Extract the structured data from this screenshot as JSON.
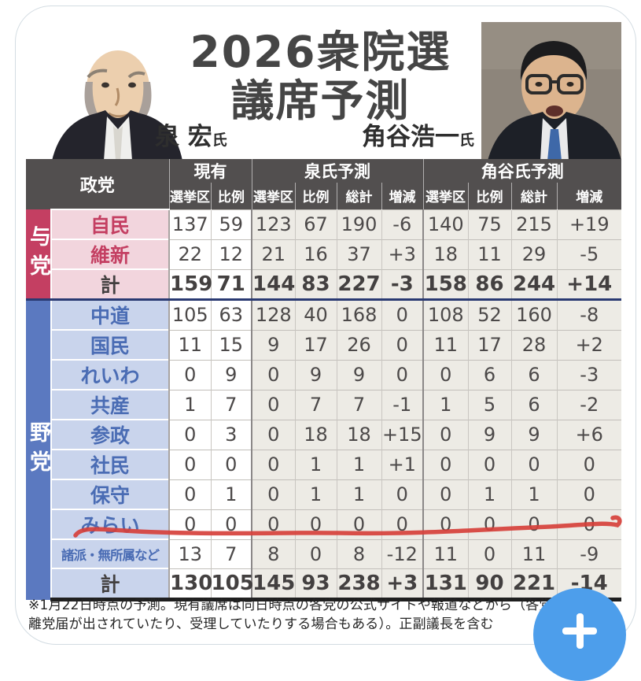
{
  "title": {
    "line1": "2026衆院選",
    "line2": "議席予測"
  },
  "commentators": {
    "left": {
      "name": "泉 宏",
      "suffix": "氏"
    },
    "right": {
      "name": "角谷浩一",
      "suffix": "氏"
    }
  },
  "colors": {
    "header_bg": "#524f4f",
    "ruling_accent": "#c43f62",
    "ruling_row_bg": "#f2d5dd",
    "ruling_text": "#c43f62",
    "opposition_accent": "#5b79c0",
    "opposition_row_bg": "#c9d4ec",
    "opposition_text": "#4a6cb4",
    "total_text": "#434040",
    "prediction_cell_bg": "#edebe5",
    "current_cell_bg": "#ffffff",
    "red_annotation": "#d6403b",
    "fab_blue": "#4d9eeb"
  },
  "table": {
    "header": {
      "party": "政党",
      "groups": [
        {
          "label": "現有",
          "cols": [
            "選挙区",
            "比例"
          ]
        },
        {
          "label": "泉氏予測",
          "cols": [
            "選挙区",
            "比例",
            "総計",
            "増減"
          ]
        },
        {
          "label": "角谷氏予測",
          "cols": [
            "選挙区",
            "比例",
            "総計",
            "増減"
          ]
        }
      ]
    },
    "sections": [
      {
        "key": "ruling",
        "name": "与党",
        "rows": [
          {
            "party": "自民",
            "values": [
              "137",
              "59",
              "123",
              "67",
              "190",
              "-6",
              "140",
              "75",
              "215",
              "+19"
            ],
            "is_total": false
          },
          {
            "party": "維新",
            "values": [
              "22",
              "12",
              "21",
              "16",
              "37",
              "+3",
              "18",
              "11",
              "29",
              "-5"
            ],
            "is_total": false
          },
          {
            "party": "計",
            "values": [
              "159",
              "71",
              "144",
              "83",
              "227",
              "-3",
              "158",
              "86",
              "244",
              "+14"
            ],
            "is_total": true
          }
        ]
      },
      {
        "key": "opposition",
        "name": "野党",
        "rows": [
          {
            "party": "中道",
            "values": [
              "105",
              "63",
              "128",
              "40",
              "168",
              "0",
              "108",
              "52",
              "160",
              "-8"
            ],
            "is_total": false
          },
          {
            "party": "国民",
            "values": [
              "11",
              "15",
              "9",
              "17",
              "26",
              "0",
              "11",
              "17",
              "28",
              "+2"
            ],
            "is_total": false
          },
          {
            "party": "れいわ",
            "values": [
              "0",
              "9",
              "0",
              "9",
              "9",
              "0",
              "0",
              "6",
              "6",
              "-3"
            ],
            "is_total": false
          },
          {
            "party": "共産",
            "values": [
              "1",
              "7",
              "0",
              "7",
              "7",
              "-1",
              "1",
              "5",
              "6",
              "-2"
            ],
            "is_total": false
          },
          {
            "party": "参政",
            "values": [
              "0",
              "3",
              "0",
              "18",
              "18",
              "+15",
              "0",
              "9",
              "9",
              "+6"
            ],
            "is_total": false
          },
          {
            "party": "社民",
            "values": [
              "0",
              "0",
              "0",
              "1",
              "1",
              "+1",
              "0",
              "0",
              "0",
              "0"
            ],
            "is_total": false
          },
          {
            "party": "保守",
            "values": [
              "0",
              "1",
              "0",
              "1",
              "1",
              "0",
              "0",
              "1",
              "1",
              "0"
            ],
            "is_total": false
          },
          {
            "party": "みらい",
            "values": [
              "0",
              "0",
              "0",
              "0",
              "0",
              "0",
              "0",
              "0",
              "0",
              "0"
            ],
            "is_total": false,
            "red_underline": true
          },
          {
            "party": "諸派・無所属など",
            "values": [
              "13",
              "7",
              "8",
              "0",
              "8",
              "-12",
              "11",
              "0",
              "11",
              "-9"
            ],
            "is_total": false,
            "small": true
          },
          {
            "party": "計",
            "values": [
              "130",
              "105",
              "145",
              "93",
              "238",
              "+3",
              "131",
              "90",
              "221",
              "-14"
            ],
            "is_total": true
          }
        ]
      }
    ]
  },
  "footnote": {
    "line1": "※1月22日時点の予測。現有議席は同日時点の各党の公式サイトや報道などから（各党につ",
    "line2": "離党届が出されていたり、受理していたりする場合もある）。正副議長を含む"
  },
  "fab": {
    "icon": "plus"
  }
}
